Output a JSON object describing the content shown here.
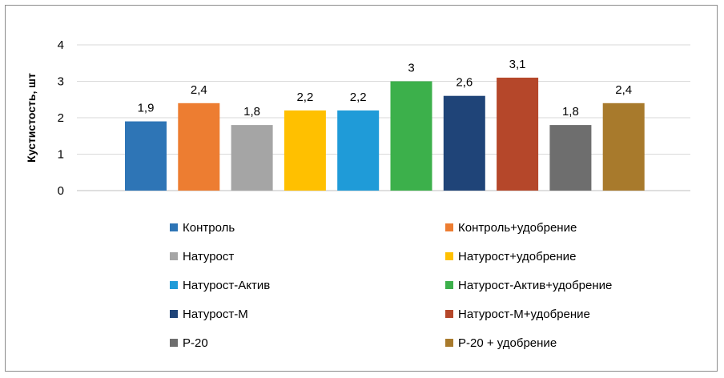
{
  "chart_data": {
    "type": "bar",
    "title": "",
    "xlabel": "",
    "ylabel": "Кустистость, шт",
    "ylim": [
      0,
      4
    ],
    "yticks": [
      0,
      1,
      2,
      3,
      4
    ],
    "grid": true,
    "legend_position": "bottom",
    "series": [
      {
        "name": "Контроль",
        "value": 1.9,
        "label": "1,9",
        "color": "#2e75b6"
      },
      {
        "name": "Контроль+удобрение",
        "value": 2.4,
        "label": "2,4",
        "color": "#ed7d31"
      },
      {
        "name": "Натурост",
        "value": 1.8,
        "label": "1,8",
        "color": "#a5a5a5"
      },
      {
        "name": "Натурост+удобрение",
        "value": 2.2,
        "label": "2,2",
        "color": "#ffc000"
      },
      {
        "name": "Натурост-Актив",
        "value": 2.2,
        "label": "2,2",
        "color": "#1f9bd8"
      },
      {
        "name": "Натурост-Актив+удобрение",
        "value": 3,
        "label": "3",
        "color": "#3cb04b"
      },
      {
        "name": "Натурост-М",
        "value": 2.6,
        "label": "2,6",
        "color": "#1f4478"
      },
      {
        "name": "Натурост-М+удобрение",
        "value": 3.1,
        "label": "3,1",
        "color": "#b5472a"
      },
      {
        "name": "Р-20",
        "value": 1.8,
        "label": "1,8",
        "color": "#6e6e6e"
      },
      {
        "name": "Р-20 + удобрение",
        "value": 2.4,
        "label": "2,4",
        "color": "#a87a2c"
      }
    ]
  }
}
